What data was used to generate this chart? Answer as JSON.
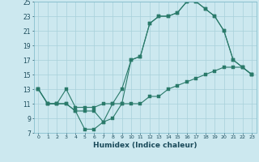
{
  "xlabel": "Humidex (Indice chaleur)",
  "bg_color": "#cce8ef",
  "grid_color": "#a8d0da",
  "line_color": "#2a7a6a",
  "xlim": [
    -0.5,
    23.5
  ],
  "ylim": [
    7,
    25
  ],
  "xticks": [
    0,
    1,
    2,
    3,
    4,
    5,
    6,
    7,
    8,
    9,
    10,
    11,
    12,
    13,
    14,
    15,
    16,
    17,
    18,
    19,
    20,
    21,
    22,
    23
  ],
  "yticks": [
    7,
    9,
    11,
    13,
    15,
    17,
    19,
    21,
    23,
    25
  ],
  "line1_x": [
    0,
    1,
    2,
    3,
    4,
    5,
    6,
    7,
    8,
    9,
    10,
    11,
    12,
    13,
    14,
    15,
    16,
    17,
    18,
    19,
    20,
    21,
    22,
    23
  ],
  "line1_y": [
    13,
    11,
    11,
    11,
    10,
    10,
    10,
    8.5,
    11,
    13,
    17,
    17.5,
    22,
    23,
    23,
    23.5,
    25,
    25,
    24,
    23,
    21,
    17,
    16,
    15
  ],
  "line2_x": [
    0,
    1,
    2,
    3,
    4,
    5,
    6,
    7,
    8,
    9,
    10,
    11,
    12,
    13,
    14,
    15,
    16,
    17,
    18,
    19,
    20,
    21,
    22,
    23
  ],
  "line2_y": [
    13,
    11,
    11,
    11,
    10,
    7.5,
    7.5,
    8.5,
    9,
    11,
    17,
    17.5,
    22,
    23,
    23,
    23.5,
    25,
    25,
    24,
    23,
    21,
    17,
    16,
    15
  ],
  "line3_x": [
    0,
    1,
    2,
    3,
    4,
    5,
    6,
    7,
    8,
    9,
    10,
    11,
    12,
    13,
    14,
    15,
    16,
    17,
    18,
    19,
    20,
    21,
    22,
    23
  ],
  "line3_y": [
    13,
    11,
    11,
    13,
    10.5,
    10.5,
    10.5,
    11,
    11,
    11,
    11,
    11,
    12,
    12,
    13,
    13.5,
    14,
    14.5,
    15,
    15.5,
    16,
    16,
    16,
    15
  ]
}
